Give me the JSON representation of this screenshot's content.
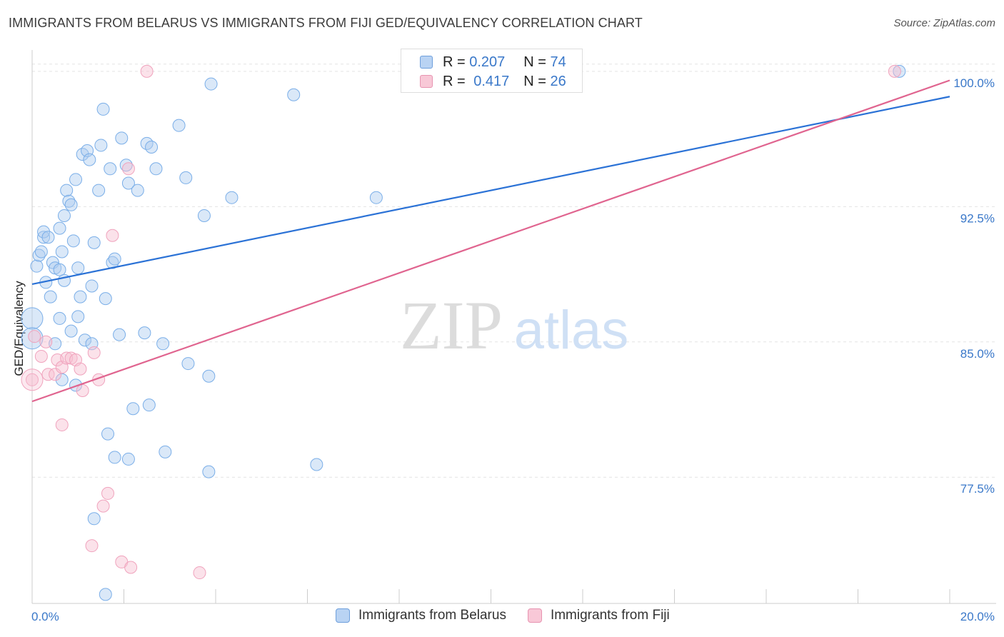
{
  "chart_data": {
    "type": "scatter",
    "title": "IMMIGRANTS FROM BELARUS VS IMMIGRANTS FROM FIJI GED/EQUIVALENCY CORRELATION CHART",
    "source": "Source: ZipAtlas.com",
    "xlabel": "",
    "ylabel": "GED/Equivalency",
    "xlim": [
      0,
      20
    ],
    "ylim": [
      70.5,
      101.5
    ],
    "x_tick_labels": [
      "0.0%",
      "20.0%"
    ],
    "y_ticks": [
      77.5,
      85.0,
      92.5,
      100.0
    ],
    "y_tick_labels": [
      "77.5%",
      "85.0%",
      "92.5%",
      "100.0%"
    ],
    "watermark": {
      "zip": "ZIP",
      "atlas": "atlas"
    },
    "legend": {
      "r_label": "R =",
      "n_label": "N =",
      "entries": [
        {
          "r": "0.207",
          "n": "74"
        },
        {
          "r": "0.417",
          "n": "26"
        }
      ]
    },
    "series": [
      {
        "name": "Immigrants from Belarus",
        "color": "#7aaee8",
        "line_color": "#2b72d6",
        "trend": [
          [
            0,
            88.2
          ],
          [
            20,
            98.6
          ]
        ],
        "points": [
          [
            0.0,
            86.3
          ],
          [
            0.0,
            85.2
          ],
          [
            0.1,
            89.2
          ],
          [
            0.15,
            89.8
          ],
          [
            0.2,
            90.0
          ],
          [
            0.25,
            90.8
          ],
          [
            0.25,
            91.1
          ],
          [
            0.3,
            88.3
          ],
          [
            0.35,
            90.8
          ],
          [
            0.4,
            87.5
          ],
          [
            0.45,
            89.4
          ],
          [
            0.5,
            89.1
          ],
          [
            0.6,
            89.0
          ],
          [
            0.6,
            91.3
          ],
          [
            0.65,
            90.0
          ],
          [
            0.7,
            92.0
          ],
          [
            0.75,
            93.4
          ],
          [
            0.8,
            92.8
          ],
          [
            0.85,
            92.6
          ],
          [
            0.9,
            90.6
          ],
          [
            0.95,
            94.0
          ],
          [
            1.0,
            89.1
          ],
          [
            1.05,
            87.5
          ],
          [
            1.1,
            95.4
          ],
          [
            1.2,
            95.6
          ],
          [
            1.25,
            95.1
          ],
          [
            1.3,
            88.1
          ],
          [
            1.35,
            90.5
          ],
          [
            1.45,
            93.4
          ],
          [
            1.5,
            95.9
          ],
          [
            1.55,
            97.9
          ],
          [
            1.6,
            87.4
          ],
          [
            1.7,
            94.6
          ],
          [
            1.75,
            89.4
          ],
          [
            1.8,
            89.6
          ],
          [
            1.9,
            85.4
          ],
          [
            1.95,
            96.3
          ],
          [
            2.05,
            94.8
          ],
          [
            2.1,
            93.8
          ],
          [
            2.2,
            81.3
          ],
          [
            2.3,
            93.4
          ],
          [
            2.45,
            85.5
          ],
          [
            2.5,
            96.0
          ],
          [
            2.6,
            95.8
          ],
          [
            2.7,
            94.6
          ],
          [
            2.85,
            84.9
          ],
          [
            3.2,
            97.0
          ],
          [
            3.35,
            94.1
          ],
          [
            3.75,
            92.0
          ],
          [
            3.9,
            99.3
          ],
          [
            4.35,
            93.0
          ],
          [
            5.7,
            98.7
          ],
          [
            7.5,
            93.0
          ],
          [
            18.9,
            100.0
          ],
          [
            0.5,
            84.9
          ],
          [
            0.6,
            86.3
          ],
          [
            0.7,
            88.4
          ],
          [
            0.85,
            85.6
          ],
          [
            1.0,
            86.4
          ],
          [
            0.95,
            82.6
          ],
          [
            0.65,
            82.9
          ],
          [
            1.15,
            85.1
          ],
          [
            1.3,
            84.9
          ],
          [
            1.65,
            79.9
          ],
          [
            1.8,
            78.6
          ],
          [
            2.1,
            78.5
          ],
          [
            2.55,
            81.5
          ],
          [
            2.9,
            78.9
          ],
          [
            3.4,
            83.8
          ],
          [
            3.85,
            77.8
          ],
          [
            3.85,
            83.1
          ],
          [
            6.2,
            78.2
          ],
          [
            1.35,
            75.2
          ],
          [
            1.6,
            71.0
          ]
        ]
      },
      {
        "name": "Immigrants from Fiji",
        "color": "#f0a3bd",
        "line_color": "#e0648f",
        "trend": [
          [
            0,
            81.7
          ],
          [
            20,
            99.5
          ]
        ],
        "points": [
          [
            0.0,
            82.9
          ],
          [
            0.05,
            85.3
          ],
          [
            0.2,
            84.2
          ],
          [
            0.3,
            85.0
          ],
          [
            0.35,
            83.2
          ],
          [
            0.5,
            83.2
          ],
          [
            0.55,
            84.0
          ],
          [
            0.65,
            83.6
          ],
          [
            0.75,
            84.1
          ],
          [
            0.85,
            84.1
          ],
          [
            0.95,
            84.0
          ],
          [
            1.05,
            83.5
          ],
          [
            1.1,
            82.3
          ],
          [
            1.35,
            84.4
          ],
          [
            1.45,
            82.9
          ],
          [
            1.75,
            90.9
          ],
          [
            2.1,
            94.6
          ],
          [
            2.5,
            100.0
          ],
          [
            0.65,
            80.4
          ],
          [
            1.55,
            75.9
          ],
          [
            1.65,
            76.6
          ],
          [
            1.3,
            73.7
          ],
          [
            1.95,
            72.8
          ],
          [
            2.15,
            72.5
          ],
          [
            3.65,
            72.2
          ],
          [
            18.8,
            100.0
          ]
        ]
      }
    ]
  }
}
